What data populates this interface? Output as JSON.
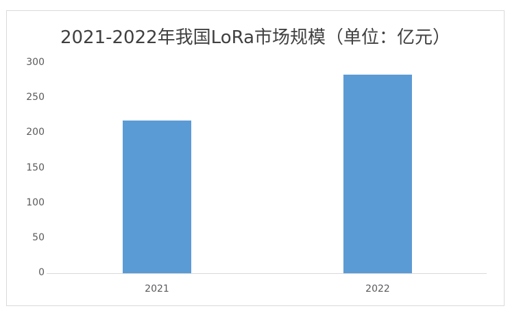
{
  "chart_data": {
    "type": "bar",
    "title": "2021-2022年我国LoRa市场规模（单位：亿元）",
    "categories": [
      "2021",
      "2022"
    ],
    "values": [
      218,
      283
    ],
    "xlabel": "",
    "ylabel": "",
    "ylim": [
      0,
      300
    ],
    "yticks": [
      "0",
      "50",
      "100",
      "150",
      "200",
      "250",
      "300"
    ],
    "grid": false,
    "legend": null,
    "bar_color": "#5b9bd5"
  }
}
